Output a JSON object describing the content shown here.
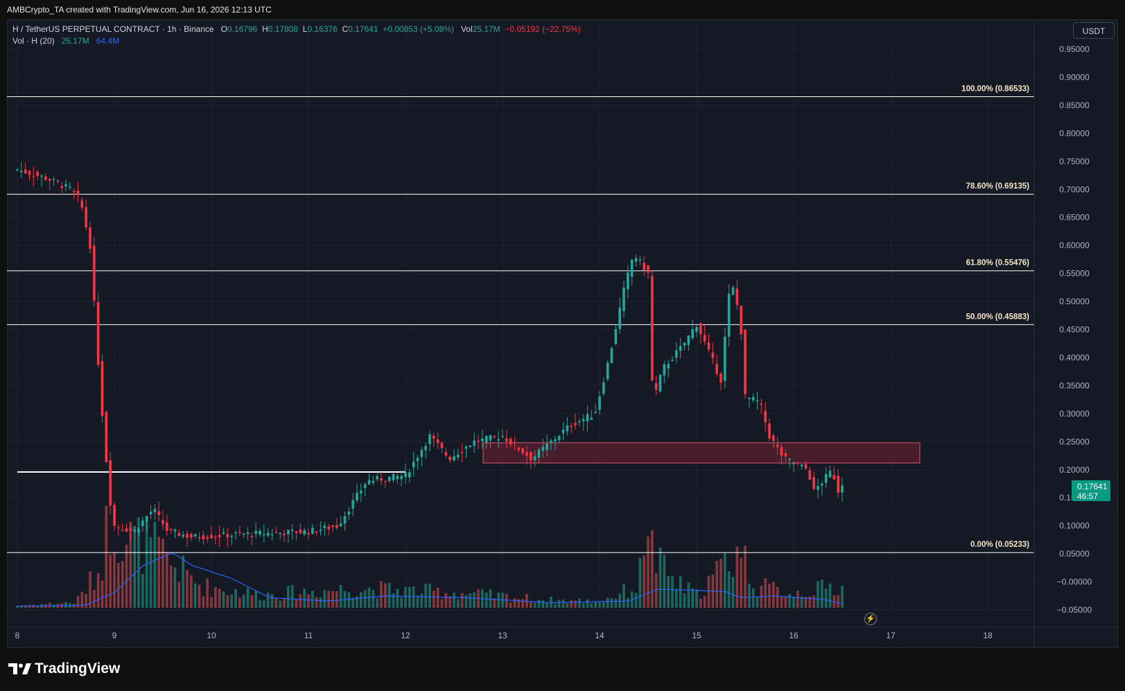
{
  "header": {
    "attribution": "AMBCrypto_TA created with TradingView.com, Jun 16, 2026 12:13 UTC"
  },
  "legend": {
    "symbol": "H / TetherUS PERPETUAL CONTRACT · 1h · Binance",
    "o_label": "O",
    "o_value": "0.16796",
    "h_label": "H",
    "h_value": "0.17808",
    "l_label": "L",
    "l_value": "0.16376",
    "c_label": "C",
    "c_value": "0.17641",
    "change": "+0.00853 (+5.08%)",
    "vol_label": "Vol",
    "vol_value": "25.17M",
    "vol_change": "−0.05192 (−22.75%)",
    "vol_indicator": "Vol · H (20)",
    "vol_current": "25.17M",
    "vol_ma": "64.4M"
  },
  "currency_button": "USDT",
  "last_price": {
    "price": "0.17641",
    "countdown": "46:57"
  },
  "footer": {
    "brand": "TradingView"
  },
  "colors": {
    "background": "#151924",
    "up": "#26a69a",
    "down": "#f23645",
    "ma_line": "#2962ff",
    "fib_line": "#ffffff",
    "zone_fill": "#5a1f2d"
  },
  "chart_data": {
    "type": "candlestick",
    "timeframe": "1h",
    "yaxis_labels": [
      "0.95000",
      "0.90000",
      "0.85000",
      "0.80000",
      "0.75000",
      "0.70000",
      "0.65000",
      "0.60000",
      "0.55000",
      "0.50000",
      "0.45000",
      "0.40000",
      "0.35000",
      "0.30000",
      "0.25000",
      "0.20000",
      "0.15000",
      "0.10000",
      "0.05000",
      "−0.00000",
      "−0.05000"
    ],
    "xaxis_labels": [
      "8",
      "9",
      "10",
      "11",
      "12",
      "13",
      "14",
      "15",
      "16",
      "17",
      "18"
    ],
    "ylim": [
      -0.08,
      0.98
    ],
    "fib_levels": [
      {
        "label": "100.00% (0.86533)",
        "value": 0.86533
      },
      {
        "label": "78.60% (0.69135)",
        "value": 0.69135
      },
      {
        "label": "61.80% (0.55476)",
        "value": 0.55476
      },
      {
        "label": "50.00% (0.45883)",
        "value": 0.45883
      },
      {
        "label": "0.00% (0.05233)",
        "value": 0.05233
      }
    ],
    "support_line": {
      "value": 0.196,
      "from_day": 8.0,
      "to_day": 12.0
    },
    "zone": {
      "top": 0.248,
      "bottom": 0.212,
      "from_day": 12.8,
      "to_day": 17.3
    },
    "candle_keyframes": [
      [
        8.0,
        0.735
      ],
      [
        8.3,
        0.72
      ],
      [
        8.55,
        0.7
      ],
      [
        8.65,
        0.68
      ],
      [
        8.75,
        0.6
      ],
      [
        8.85,
        0.35
      ],
      [
        8.95,
        0.15
      ],
      [
        9.0,
        0.1
      ],
      [
        9.2,
        0.09
      ],
      [
        9.4,
        0.13
      ],
      [
        9.55,
        0.09
      ],
      [
        9.8,
        0.08
      ],
      [
        10.3,
        0.085
      ],
      [
        11.0,
        0.09
      ],
      [
        11.3,
        0.1
      ],
      [
        11.6,
        0.18
      ],
      [
        12.0,
        0.19
      ],
      [
        12.25,
        0.26
      ],
      [
        12.45,
        0.22
      ],
      [
        12.7,
        0.25
      ],
      [
        13.0,
        0.26
      ],
      [
        13.3,
        0.22
      ],
      [
        13.7,
        0.28
      ],
      [
        13.95,
        0.3
      ],
      [
        14.1,
        0.4
      ],
      [
        14.25,
        0.52
      ],
      [
        14.35,
        0.585
      ],
      [
        14.5,
        0.55
      ],
      [
        14.55,
        0.32
      ],
      [
        14.65,
        0.38
      ],
      [
        14.85,
        0.42
      ],
      [
        15.0,
        0.46
      ],
      [
        15.25,
        0.36
      ],
      [
        15.35,
        0.54
      ],
      [
        15.45,
        0.47
      ],
      [
        15.5,
        0.33
      ],
      [
        15.65,
        0.32
      ],
      [
        15.75,
        0.26
      ],
      [
        15.9,
        0.22
      ],
      [
        16.15,
        0.2
      ],
      [
        16.2,
        0.16
      ],
      [
        16.3,
        0.18
      ],
      [
        16.4,
        0.2
      ],
      [
        16.45,
        0.16
      ],
      [
        16.5,
        0.176
      ]
    ],
    "volume_keyframes": [
      [
        8.0,
        0.02
      ],
      [
        8.6,
        0.05
      ],
      [
        8.85,
        0.35
      ],
      [
        8.95,
        0.85
      ],
      [
        9.1,
        0.65
      ],
      [
        9.4,
        0.55
      ],
      [
        9.6,
        0.4
      ],
      [
        9.9,
        0.2
      ],
      [
        10.5,
        0.12
      ],
      [
        11.5,
        0.18
      ],
      [
        12.5,
        0.14
      ],
      [
        13.5,
        0.07
      ],
      [
        14.0,
        0.06
      ],
      [
        14.4,
        0.2
      ],
      [
        14.5,
        0.95
      ],
      [
        14.55,
        0.45
      ],
      [
        14.8,
        0.22
      ],
      [
        15.0,
        0.12
      ],
      [
        15.45,
        0.55
      ],
      [
        15.6,
        0.2
      ],
      [
        16.0,
        0.14
      ],
      [
        16.5,
        0.2
      ]
    ],
    "ma_keyframes": [
      [
        8.0,
        0.02
      ],
      [
        8.7,
        0.03
      ],
      [
        9.0,
        0.18
      ],
      [
        9.3,
        0.5
      ],
      [
        9.6,
        0.65
      ],
      [
        9.8,
        0.5
      ],
      [
        10.2,
        0.35
      ],
      [
        10.6,
        0.12
      ],
      [
        11.2,
        0.08
      ],
      [
        11.8,
        0.14
      ],
      [
        12.6,
        0.12
      ],
      [
        13.5,
        0.06
      ],
      [
        14.3,
        0.08
      ],
      [
        14.6,
        0.22
      ],
      [
        14.9,
        0.21
      ],
      [
        15.3,
        0.19
      ],
      [
        15.45,
        0.12
      ],
      [
        15.8,
        0.14
      ],
      [
        16.3,
        0.1
      ],
      [
        16.5,
        0.05
      ]
    ]
  }
}
